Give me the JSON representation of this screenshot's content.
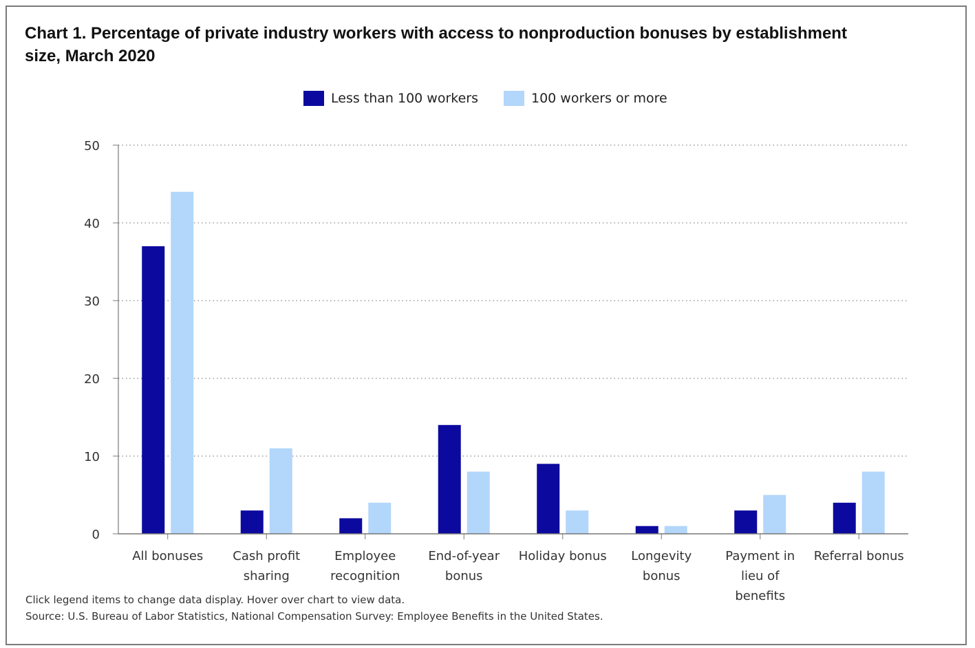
{
  "chart_title": "Chart 1. Percentage of private industry workers with access to nonproduction bonuses by establishment size, March 2020",
  "legend": [
    {
      "label": "Less than 100 workers",
      "color": "#0c0a9e"
    },
    {
      "label": "100 workers or more",
      "color": "#b3d6fb"
    }
  ],
  "footer": {
    "note": "Click legend items to change data display. Hover over chart to view data.",
    "source": "Source: U.S. Bureau of Labor Statistics, National Compensation Survey: Employee Benefits in the United States."
  },
  "chart_data": {
    "type": "bar",
    "title": "Chart 1. Percentage of private industry workers with access to nonproduction bonuses by establishment size, March 2020",
    "xlabel": "",
    "ylabel": "",
    "categories": [
      [
        "All bonuses"
      ],
      [
        "Cash profit",
        "sharing"
      ],
      [
        "Employee",
        "recognition"
      ],
      [
        "End-of-year",
        "bonus"
      ],
      [
        "Holiday bonus"
      ],
      [
        "Longevity",
        "bonus"
      ],
      [
        "Payment in",
        "lieu of",
        "benefits"
      ],
      [
        "Referral bonus"
      ]
    ],
    "series": [
      {
        "name": "Less than 100 workers",
        "color": "#0c0a9e",
        "values": [
          37,
          3,
          2,
          14,
          9,
          1,
          3,
          4
        ]
      },
      {
        "name": "100 workers or more",
        "color": "#b3d6fb",
        "values": [
          44,
          11,
          4,
          8,
          3,
          1,
          5,
          8
        ]
      }
    ],
    "yticks": [
      0,
      10,
      20,
      30,
      40,
      50
    ],
    "ylim": [
      0,
      50
    ],
    "grid": true,
    "legend_position": "top-center"
  }
}
